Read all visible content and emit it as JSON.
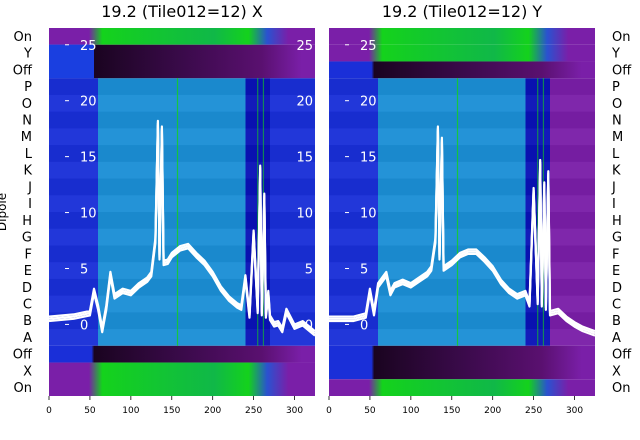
{
  "chart_data": [
    {
      "type": "heatmap",
      "title": "19.2 (Tile012=12) X",
      "ylabel": "Dipole",
      "xlim": [
        0,
        325
      ],
      "xticks": [
        0,
        50,
        100,
        150,
        200,
        250,
        300
      ],
      "rows_top_to_bottom": [
        "On",
        "Y",
        "Off",
        "P",
        "O",
        "N",
        "M",
        "L",
        "K",
        "J",
        "I",
        "H",
        "G",
        "F",
        "E",
        "D",
        "C",
        "B",
        "A",
        "Off",
        "X",
        "On"
      ],
      "overlay_yticks": [
        25,
        20,
        15,
        10,
        5,
        0
      ],
      "overlay_ylim": [
        -6.4,
        26.5
      ],
      "band_colors_along_x": [
        {
          "x0": 0,
          "x1": 60,
          "color": "#1a2fd8"
        },
        {
          "x0": 60,
          "x1": 240,
          "color": "#1c8fd6"
        },
        {
          "x0": 240,
          "x1": 270,
          "color": "#0a12b8"
        },
        {
          "x0": 270,
          "x1": 325,
          "color": "#1a2fd8"
        }
      ],
      "overlay_series": [
        {
          "x": [
            0,
            30,
            50,
            55,
            60,
            65,
            70,
            75,
            80,
            90,
            100,
            110,
            120,
            125,
            130,
            133,
            135,
            138,
            140,
            145,
            150,
            160,
            170,
            180,
            190,
            200,
            210,
            220,
            230,
            235,
            240,
            245,
            250,
            255,
            258,
            260,
            263,
            265,
            268,
            270,
            275,
            280,
            285,
            290,
            300,
            310,
            325
          ],
          "y": [
            0.5,
            0.7,
            1.0,
            3.0,
            1.5,
            -0.5,
            1.5,
            4.5,
            2.5,
            3.0,
            2.8,
            3.5,
            4.0,
            4.5,
            7.5,
            18.0,
            6.0,
            17.5,
            5.5,
            5.6,
            6.2,
            6.8,
            7.0,
            6.2,
            5.5,
            4.5,
            3.2,
            2.3,
            1.7,
            1.5,
            4.2,
            0.8,
            8.2,
            1.2,
            14.0,
            1.0,
            11.5,
            0.8,
            2.8,
            0.6,
            0.0,
            0.1,
            -0.5,
            1.2,
            -0.2,
            0.1,
            -0.8
          ]
        }
      ]
    },
    {
      "type": "heatmap",
      "title": "19.2 (Tile012=12) Y",
      "ylabel": "",
      "xlim": [
        0,
        325
      ],
      "xticks": [
        0,
        50,
        100,
        150,
        200,
        250,
        300
      ],
      "rows_top_to_bottom": [
        "On",
        "Y",
        "Off",
        "P",
        "O",
        "N",
        "M",
        "L",
        "K",
        "J",
        "I",
        "H",
        "G",
        "F",
        "E",
        "D",
        "C",
        "B",
        "A",
        "Off",
        "X",
        "On"
      ],
      "overlay_yticks": [
        25,
        20,
        15,
        10,
        5,
        0
      ],
      "overlay_ylim": [
        -6.4,
        26.5
      ],
      "band_colors_along_x": [
        {
          "x0": 0,
          "x1": 60,
          "color": "#1a2fd8"
        },
        {
          "x0": 60,
          "x1": 240,
          "color": "#1c8fd6"
        },
        {
          "x0": 240,
          "x1": 270,
          "color": "#0a12b8"
        },
        {
          "x0": 270,
          "x1": 325,
          "color": "#7a1fa8"
        }
      ],
      "overlay_series": [
        {
          "x": [
            0,
            30,
            45,
            50,
            55,
            60,
            70,
            75,
            80,
            90,
            100,
            110,
            120,
            125,
            130,
            133,
            135,
            138,
            140,
            150,
            160,
            170,
            180,
            190,
            200,
            210,
            220,
            230,
            240,
            245,
            250,
            255,
            258,
            260,
            263,
            265,
            268,
            270,
            280,
            290,
            300,
            310,
            325
          ],
          "y": [
            0.5,
            0.5,
            0.8,
            3.0,
            1.0,
            3.5,
            4.5,
            2.8,
            3.5,
            3.8,
            3.5,
            4.0,
            4.5,
            5.0,
            7.5,
            17.5,
            6.0,
            16.5,
            5.0,
            5.5,
            6.2,
            6.5,
            6.5,
            5.8,
            5.0,
            3.8,
            3.0,
            2.5,
            2.8,
            1.8,
            12.0,
            2.0,
            14.5,
            1.8,
            12.5,
            1.5,
            13.5,
            1.0,
            1.2,
            0.5,
            0.0,
            -0.4,
            -0.8
          ]
        }
      ]
    }
  ]
}
